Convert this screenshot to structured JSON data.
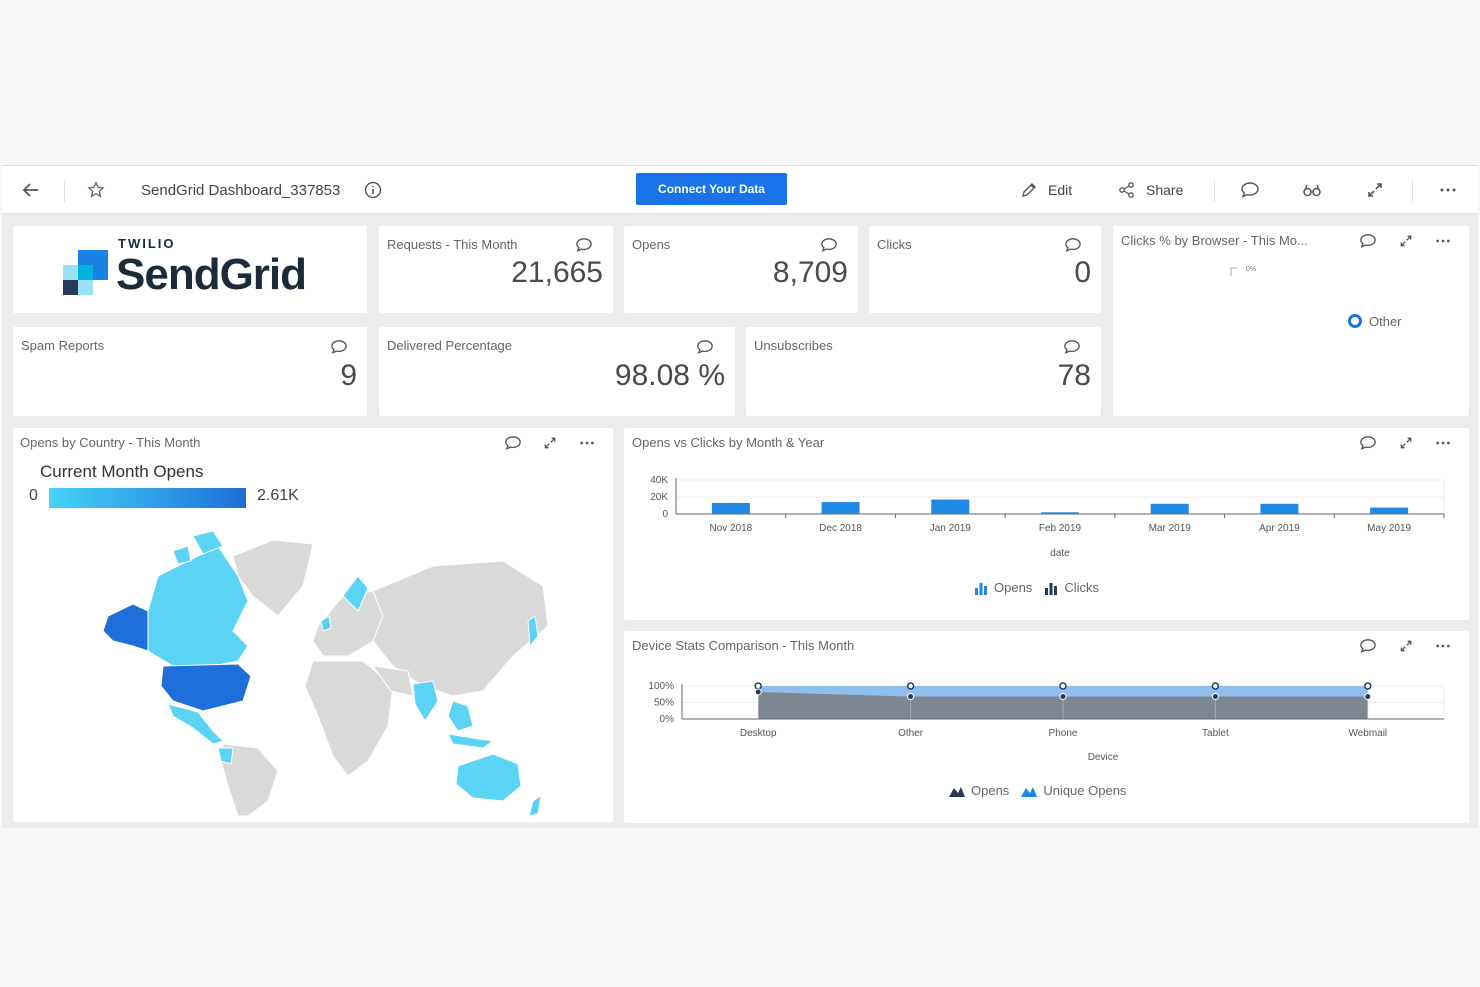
{
  "toolbar": {
    "title": "SendGrid Dashboard_337853",
    "connect_label": "Connect Your Data",
    "edit_label": "Edit",
    "share_label": "Share"
  },
  "logo": {
    "sup": "TWILIO",
    "main": "SendGrid"
  },
  "kpis": {
    "requests": {
      "title": "Requests - This Month",
      "value": "21,665"
    },
    "opens": {
      "title": "Opens",
      "value": "8,709"
    },
    "clicks": {
      "title": "Clicks",
      "value": "0"
    },
    "spam": {
      "title": "Spam Reports",
      "value": "9"
    },
    "delivered": {
      "title": "Delivered Percentage",
      "value": "98.08 %"
    },
    "unsubscribes": {
      "title": "Unsubscribes",
      "value": "78"
    }
  },
  "browser": {
    "title": "Clicks % by Browser - This Mo...",
    "mini_label": "0%",
    "legend": "Other"
  },
  "country": {
    "title": "Opens by Country - This Month",
    "legend_title": "Current Month Opens",
    "min": "0",
    "max": "2.61K"
  },
  "colors": {
    "accent": "#1a73e8",
    "bar": "#1e88e5",
    "dark_area": "#7c8791",
    "light_area": "#8fbff0",
    "map_dark": "#1e6fd9",
    "map_light": "#5ad3f5",
    "map_grey": "#d9d9d9"
  },
  "chart_data": [
    {
      "type": "bar",
      "title": "Opens vs Clicks by Month & Year",
      "xlabel": "date",
      "categories": [
        "Nov 2018",
        "Dec 2018",
        "Jan 2019",
        "Feb 2019",
        "Mar 2019",
        "Apr 2019",
        "May 2019"
      ],
      "y_ticks": [
        "40K",
        "20K",
        "0"
      ],
      "ylim": [
        0,
        40000
      ],
      "series": [
        {
          "name": "Opens",
          "values": [
            13000,
            14000,
            17000,
            2000,
            12000,
            12000,
            7500
          ]
        },
        {
          "name": "Clicks",
          "values": [
            0,
            0,
            0,
            0,
            0,
            0,
            0
          ]
        }
      ],
      "legend": "bottom"
    },
    {
      "type": "area",
      "title": "Device Stats Comparison - This Month",
      "xlabel": "Device",
      "categories": [
        "Desktop",
        "Other",
        "Phone",
        "Tablet",
        "Webmail"
      ],
      "y_ticks": [
        "100%",
        "50%",
        "0%"
      ],
      "ylim": [
        0,
        100
      ],
      "series": [
        {
          "name": "Opens",
          "values": [
            82,
            68,
            68,
            68,
            68
          ]
        },
        {
          "name": "Unique Opens",
          "values": [
            100,
            100,
            100,
            100,
            100
          ]
        }
      ],
      "legend": "bottom"
    }
  ]
}
